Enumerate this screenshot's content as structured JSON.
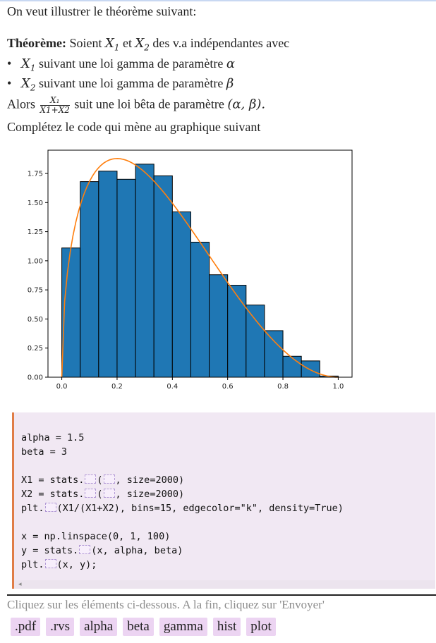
{
  "intro": "On veut illustrer le théorème suivant:",
  "theorem": {
    "heading": "Théorème:",
    "lead": "Soient",
    "x1": "X",
    "sub1": "1",
    "and": "et",
    "x2": "X",
    "sub2": "2",
    "lead_end": "des v.a indépendantes avec",
    "item1_pre": "suivant une loi gamma de paramètre",
    "item1_param": "α",
    "item2_pre": "suivant une loi gamma de paramètre",
    "item2_param": "β",
    "conclusion_pre": "Alors",
    "frac_num": "X₁",
    "frac_den": "X1+X2",
    "conclusion_post": "suit une loi bêta de paramètre",
    "conclusion_params": "(α, β)."
  },
  "instruction_top": "Complétez le code qui mène au graphique suivant",
  "code": {
    "line1": "alpha = 1.5",
    "line2": "beta = 3",
    "line3_a": "X1 = stats.",
    "line3_b": "(",
    "line3_c": ", size=2000)",
    "line4_a": "X2 = stats.",
    "line4_b": "(",
    "line4_c": ", size=2000)",
    "line5_a": "plt.",
    "line5_b": "(X1/(X1+X2), bins=15, edgecolor=\"k\", density=True)",
    "line6": "x = np.linspace(0, 1, 100)",
    "line7_a": "y = stats.",
    "line7_b": "(x, alpha, beta)",
    "line8_a": "plt.",
    "line8_b": "(x, y);"
  },
  "scroll_arrow": "◂",
  "instruction_bottom": "Cliquez sur les éléments ci-dessous. A la fin, cliquez sur 'Envoyer'",
  "tokens": [
    ".pdf",
    ".rvs",
    "alpha",
    "beta",
    "gamma",
    "hist",
    "plot"
  ],
  "colors": {
    "bar": "#1f77b4",
    "curve": "#ff7f0e",
    "code_bg": "#f1e8f3",
    "code_border": "#e07d47",
    "token_bg": "#ecd4f2"
  },
  "chart_data": {
    "type": "bar",
    "bins": [
      {
        "x0": 0.0,
        "x1": 0.0667,
        "value": 1.11
      },
      {
        "x0": 0.0667,
        "x1": 0.1333,
        "value": 1.68
      },
      {
        "x0": 0.1333,
        "x1": 0.2,
        "value": 1.77
      },
      {
        "x0": 0.2,
        "x1": 0.2667,
        "value": 1.7
      },
      {
        "x0": 0.2667,
        "x1": 0.3333,
        "value": 1.83
      },
      {
        "x0": 0.3333,
        "x1": 0.4,
        "value": 1.73
      },
      {
        "x0": 0.4,
        "x1": 0.4667,
        "value": 1.42
      },
      {
        "x0": 0.4667,
        "x1": 0.5333,
        "value": 1.16
      },
      {
        "x0": 0.5333,
        "x1": 0.6,
        "value": 0.88
      },
      {
        "x0": 0.6,
        "x1": 0.6667,
        "value": 0.79
      },
      {
        "x0": 0.6667,
        "x1": 0.7333,
        "value": 0.62
      },
      {
        "x0": 0.7333,
        "x1": 0.8,
        "value": 0.4
      },
      {
        "x0": 0.8,
        "x1": 0.8667,
        "value": 0.18
      },
      {
        "x0": 0.8667,
        "x1": 0.9333,
        "value": 0.14
      },
      {
        "x0": 0.9333,
        "x1": 1.0,
        "value": 0.01
      }
    ],
    "curve": {
      "distribution": "beta",
      "a": 1.5,
      "b": 3,
      "x_start": 0,
      "x_end": 1,
      "n": 100
    },
    "xlim": [
      -0.05,
      1.05
    ],
    "ylim": [
      0,
      1.95
    ],
    "xticks": [
      0.0,
      0.2,
      0.4,
      0.6,
      0.8,
      1.0
    ],
    "xtick_labels": [
      "0.0",
      "0.2",
      "0.4",
      "0.6",
      "0.8",
      "1.0"
    ],
    "yticks": [
      0.0,
      0.25,
      0.5,
      0.75,
      1.0,
      1.25,
      1.5,
      1.75
    ],
    "ytick_labels": [
      "0.00",
      "0.25",
      "0.50",
      "0.75",
      "1.00",
      "1.25",
      "1.50",
      "1.75"
    ],
    "grid": false
  }
}
